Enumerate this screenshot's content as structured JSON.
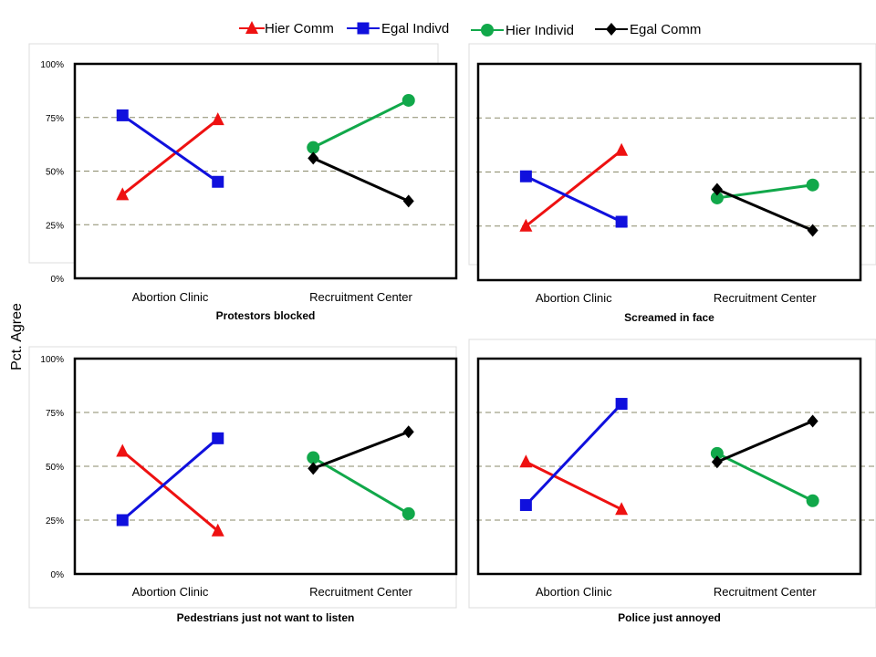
{
  "y_axis_label": "Pct. Agree",
  "colors": {
    "Hier Comm": "#ee1111",
    "Egal Indivd": "#1010dd",
    "Hier Individ": "#11a84a",
    "Egal Comm": "#000000"
  },
  "legend": [
    {
      "name": "Hier Comm",
      "marker": "triangle"
    },
    {
      "name": "Egal Indivd",
      "marker": "square"
    },
    {
      "name": "Hier Individ",
      "marker": "circle"
    },
    {
      "name": "Egal Comm",
      "marker": "diamond"
    }
  ],
  "chart_data": [
    {
      "type": "line",
      "title": "Protestors blocked",
      "categories": [
        "Abortion Clinic",
        "Recruitment Center"
      ],
      "yticks": [
        "0%",
        "25%",
        "50%",
        "75%",
        "100%"
      ],
      "ylim": [
        0,
        100
      ],
      "grid": true,
      "legend_placement": "top",
      "series": [
        {
          "name": "Hier Comm",
          "group": "Abortion Clinic",
          "values": [
            39,
            74
          ]
        },
        {
          "name": "Egal Indivd",
          "group": "Abortion Clinic",
          "values": [
            76,
            45
          ]
        },
        {
          "name": "Hier Individ",
          "group": "Recruitment Center",
          "values": [
            61,
            83
          ]
        },
        {
          "name": "Egal Comm",
          "group": "Recruitment Center",
          "values": [
            56,
            36
          ]
        }
      ]
    },
    {
      "type": "line",
      "title": "Screamed in face",
      "categories": [
        "Abortion Clinic",
        "Recruitment Center"
      ],
      "yticks": [],
      "ylim": [
        0,
        100
      ],
      "grid": true,
      "series": [
        {
          "name": "Hier Comm",
          "group": "Abortion Clinic",
          "values": [
            25,
            60
          ]
        },
        {
          "name": "Egal Indivd",
          "group": "Abortion Clinic",
          "values": [
            48,
            27
          ]
        },
        {
          "name": "Hier Individ",
          "group": "Recruitment Center",
          "values": [
            38,
            44
          ]
        },
        {
          "name": "Egal Comm",
          "group": "Recruitment Center",
          "values": [
            42,
            23
          ]
        }
      ]
    },
    {
      "type": "line",
      "title": "Pedestrians just not want to listen",
      "categories": [
        "Abortion Clinic",
        "Recruitment Center"
      ],
      "yticks": [
        "0%",
        "25%",
        "50%",
        "75%",
        "100%"
      ],
      "ylim": [
        0,
        100
      ],
      "grid": true,
      "series": [
        {
          "name": "Hier Comm",
          "group": "Abortion Clinic",
          "values": [
            57,
            20
          ]
        },
        {
          "name": "Egal Indivd",
          "group": "Abortion Clinic",
          "values": [
            25,
            63
          ]
        },
        {
          "name": "Hier Individ",
          "group": "Recruitment Center",
          "values": [
            54,
            28
          ]
        },
        {
          "name": "Egal Comm",
          "group": "Recruitment Center",
          "values": [
            49,
            66
          ]
        }
      ]
    },
    {
      "type": "line",
      "title": "Police just annoyed",
      "categories": [
        "Abortion Clinic",
        "Recruitment Center"
      ],
      "yticks": [],
      "ylim": [
        0,
        100
      ],
      "grid": true,
      "series": [
        {
          "name": "Hier Comm",
          "group": "Abortion Clinic",
          "values": [
            52,
            30
          ]
        },
        {
          "name": "Egal Indivd",
          "group": "Abortion Clinic",
          "values": [
            32,
            79
          ]
        },
        {
          "name": "Hier Individ",
          "group": "Recruitment Center",
          "values": [
            56,
            34
          ]
        },
        {
          "name": "Egal Comm",
          "group": "Recruitment Center",
          "values": [
            52,
            71
          ]
        }
      ]
    }
  ]
}
